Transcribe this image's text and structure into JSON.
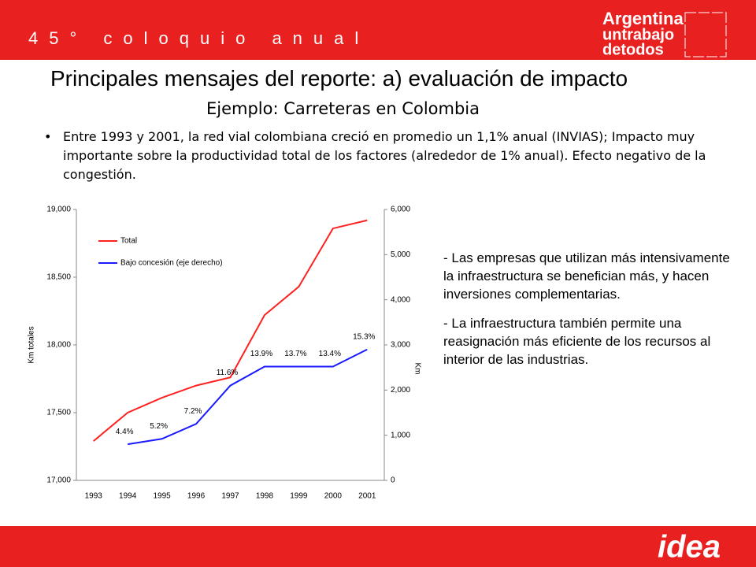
{
  "header": {
    "event": "45° coloquio anual",
    "logo": [
      "Argentina",
      "untrabajo",
      "detodos"
    ]
  },
  "title": "Principales mensajes del reporte: a) evaluación de impacto",
  "subtitle": "Ejemplo: Carreteras en Colombia",
  "bullet": "Entre 1993 y 2001, la red vial colombiana creció en promedio un 1,1% anual (INVIAS); Impacto muy importante sobre la productividad total de los factores (alrededor de 1% anual). Efecto negativo de la congestión.",
  "chart_data": {
    "type": "line",
    "categories": [
      "1993",
      "1994",
      "1995",
      "1996",
      "1997",
      "1998",
      "1999",
      "2000",
      "2001"
    ],
    "series": [
      {
        "name": "Total",
        "color": "#ff2020",
        "values": [
          17290,
          17500,
          17610,
          17700,
          17760,
          18220,
          18430,
          18860,
          18920
        ]
      },
      {
        "name": "Bajo concesión (eje derecho)",
        "color": "#1a1aff",
        "axis": "y2",
        "values": [
          null,
          800,
          920,
          1250,
          2100,
          2520,
          2520,
          2520,
          2900
        ]
      }
    ],
    "annotations": [
      null,
      "4.4%",
      "5.2%",
      "7.2%",
      "11.6%",
      "13.9%",
      "13.7%",
      "13.4%",
      "15.3%"
    ],
    "ylabel": "Km totales",
    "y2label": "Km",
    "ylim": [
      17000,
      19000
    ],
    "yticks": [
      {
        "value": 17000,
        "label": "17,000"
      },
      {
        "value": 17500,
        "label": "17,500"
      },
      {
        "value": 18000,
        "label": "18,000"
      },
      {
        "value": 18500,
        "label": "18,500"
      },
      {
        "value": 19000,
        "label": "19,000"
      }
    ],
    "y2lim": [
      0,
      6000
    ],
    "y2ticks": [
      0,
      {
        "value": 1000,
        "label": "1,000"
      },
      {
        "value": 2000,
        "label": "2,000"
      },
      {
        "value": 3000,
        "label": "3,000"
      },
      {
        "value": 4000,
        "label": "4,000"
      },
      {
        "value": 5000,
        "label": "5,000"
      },
      {
        "value": 6000,
        "label": "6,000"
      }
    ],
    "legend": "upper left"
  },
  "side_text": [
    "- Las empresas que utilizan más intensivamente la infraestructura  se benefician más, y hacen inversiones complementarias.",
    "- La infraestructura también permite una reasignación más eficiente de los recursos al interior de las industrias."
  ],
  "footer": "idea"
}
